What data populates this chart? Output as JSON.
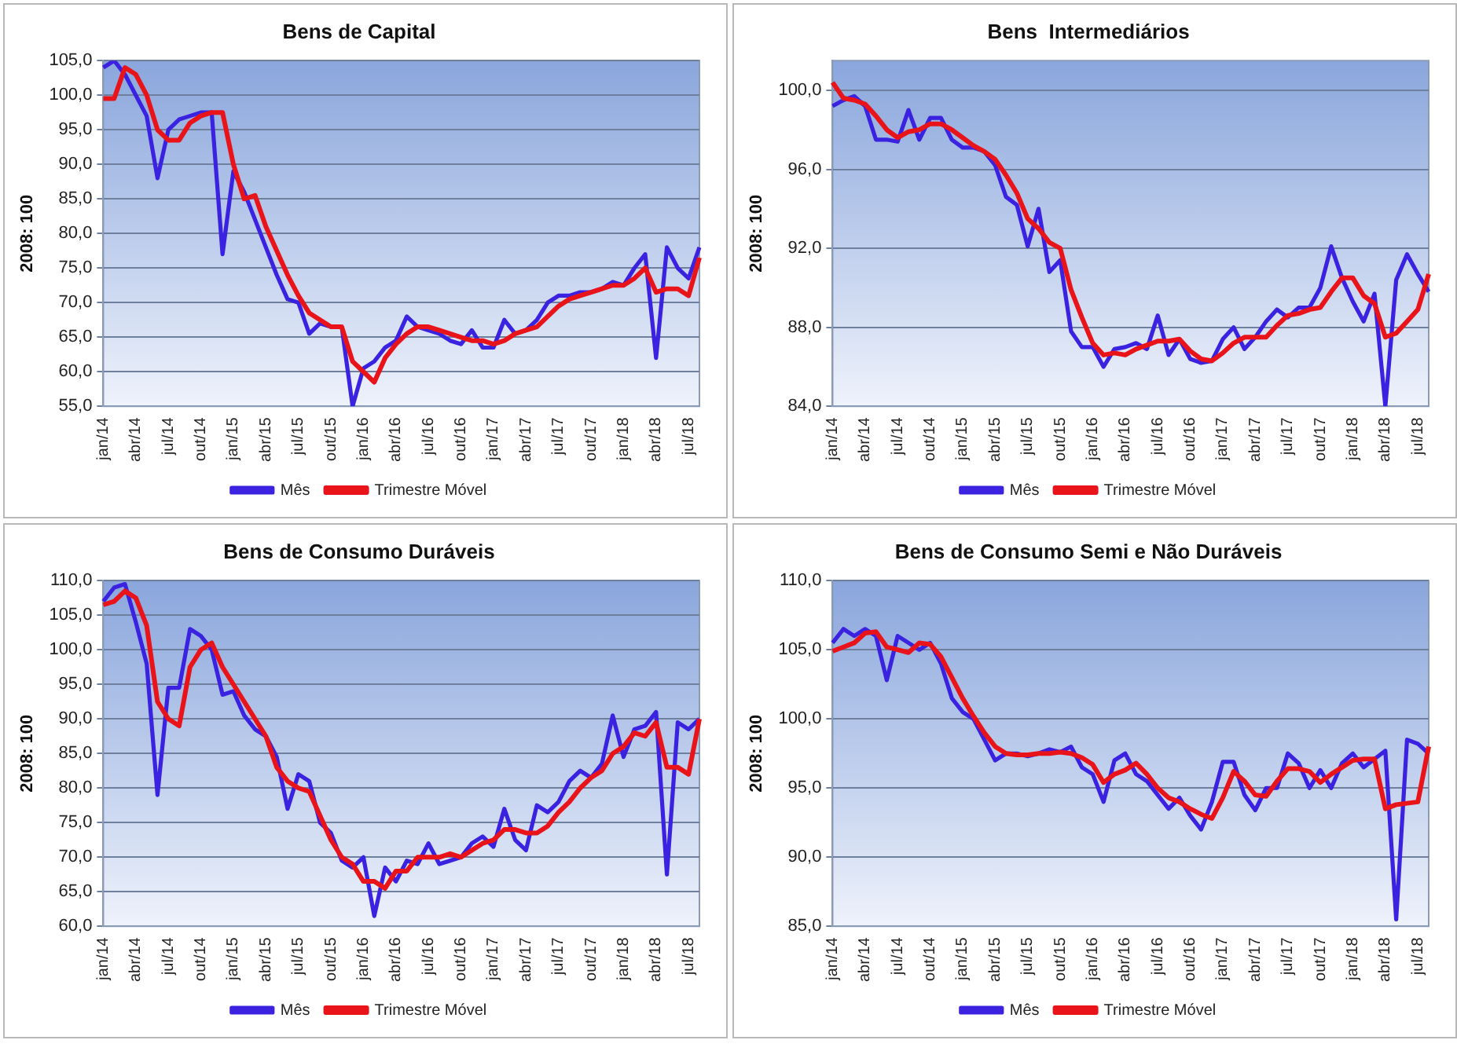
{
  "chart_data": [
    {
      "type": "line",
      "title": "Bens de Capital",
      "ylabel": "2008: 100",
      "legend": "bottom",
      "grid": "y",
      "categories": [
        "jan/14",
        null,
        null,
        "abr/14",
        null,
        null,
        "jul/14",
        null,
        null,
        "out/14",
        null,
        null,
        "jan/15",
        null,
        null,
        "abr/15",
        null,
        null,
        "jul/15",
        null,
        null,
        "out/15",
        null,
        null,
        "jan/16",
        null,
        null,
        "abr/16",
        null,
        null,
        "jul/16",
        null,
        null,
        "out/16",
        null,
        null,
        "jan/17",
        null,
        null,
        "abr/17",
        null,
        null,
        "jul/17",
        null,
        null,
        "out/17",
        null,
        null,
        "jan/18",
        null,
        null,
        "abr/18",
        null,
        null,
        "jul/18",
        null
      ],
      "ylim": [
        55,
        105
      ],
      "yticks": [
        {
          "value": 55,
          "label": "55,0"
        },
        {
          "value": 60,
          "label": "60,0"
        },
        {
          "value": 65,
          "label": "65,0"
        },
        {
          "value": 70,
          "label": "70,0"
        },
        {
          "value": 75,
          "label": "75,0"
        },
        {
          "value": 80,
          "label": "80,0"
        },
        {
          "value": 85,
          "label": "85,0"
        },
        {
          "value": 90,
          "label": "90,0"
        },
        {
          "value": 95,
          "label": "95,0"
        },
        {
          "value": 100,
          "label": "100,0"
        },
        {
          "value": 105,
          "label": "105,0"
        }
      ],
      "series": [
        {
          "name": "Mês",
          "color": "#3a22e0",
          "values": [
            104,
            105,
            103,
            100,
            97,
            88,
            95,
            96.5,
            97,
            97.5,
            97.5,
            77,
            89,
            86,
            82,
            78,
            74,
            70.5,
            70,
            65.5,
            67,
            66.5,
            66.5,
            55,
            60.5,
            61.5,
            63.5,
            64.5,
            68,
            66.5,
            66,
            65.5,
            64.5,
            64,
            66,
            63.5,
            63.5,
            67.5,
            65.5,
            66,
            67.5,
            70,
            71,
            71,
            71.5,
            71.5,
            72,
            73,
            72.5,
            75,
            77,
            62,
            78,
            75,
            73.5,
            78
          ]
        },
        {
          "name": "Trimestre Móvel",
          "color": "#e8141a",
          "values": [
            99.5,
            99.5,
            104,
            103,
            100,
            95,
            93.5,
            93.5,
            96,
            97,
            97.5,
            97.5,
            90,
            85,
            85.5,
            81,
            77.5,
            74,
            71,
            68.5,
            67.5,
            66.5,
            66.5,
            61.5,
            60,
            58.5,
            62,
            64,
            65.5,
            66.5,
            66.5,
            66,
            65.5,
            65,
            64.5,
            64.5,
            64,
            64.5,
            65.5,
            66,
            66.5,
            68,
            69.5,
            70.5,
            71,
            71.5,
            72,
            72.5,
            72.5,
            73.5,
            75,
            71.5,
            72,
            72,
            71,
            76.5
          ]
        }
      ]
    },
    {
      "type": "line",
      "title": "Bens  Intermediários",
      "ylabel": "2008: 100",
      "legend": "bottom",
      "grid": "y",
      "categories": [
        "jan/14",
        null,
        null,
        "abr/14",
        null,
        null,
        "jul/14",
        null,
        null,
        "out/14",
        null,
        null,
        "jan/15",
        null,
        null,
        "abr/15",
        null,
        null,
        "jul/15",
        null,
        null,
        "out/15",
        null,
        null,
        "jan/16",
        null,
        null,
        "abr/16",
        null,
        null,
        "jul/16",
        null,
        null,
        "out/16",
        null,
        null,
        "jan/17",
        null,
        null,
        "abr/17",
        null,
        null,
        "jul/17",
        null,
        null,
        "out/17",
        null,
        null,
        "jan/18",
        null,
        null,
        "abr/18",
        null,
        null,
        "jul/18",
        null
      ],
      "ylim": [
        84,
        101.5
      ],
      "yticks": [
        {
          "value": 84,
          "label": "84,0"
        },
        {
          "value": 88,
          "label": "88,0"
        },
        {
          "value": 92,
          "label": "92,0"
        },
        {
          "value": 96,
          "label": "96,0"
        },
        {
          "value": 100,
          "label": "100,0"
        }
      ],
      "series": [
        {
          "name": "Mês",
          "color": "#3a22e0",
          "values": [
            99.2,
            99.5,
            99.7,
            99.2,
            97.5,
            97.5,
            97.4,
            99,
            97.5,
            98.6,
            98.6,
            97.5,
            97.1,
            97.1,
            96.9,
            96.2,
            94.6,
            94.2,
            92.1,
            94,
            90.8,
            91.4,
            87.8,
            87,
            87,
            86,
            86.9,
            87,
            87.2,
            86.9,
            88.6,
            86.6,
            87.4,
            86.4,
            86.2,
            86.3,
            87.4,
            88,
            86.9,
            87.5,
            88.3,
            88.9,
            88.5,
            89,
            89,
            90,
            92.1,
            90.5,
            89.3,
            88.3,
            89.7,
            84,
            90.4,
            91.7,
            90.7,
            89.8
          ]
        },
        {
          "name": "Trimestre Móvel",
          "color": "#e8141a",
          "values": [
            100.4,
            99.6,
            99.5,
            99.3,
            98.7,
            98,
            97.6,
            97.9,
            98,
            98.3,
            98.3,
            98,
            97.6,
            97.2,
            96.9,
            96.5,
            95.7,
            94.8,
            93.5,
            93,
            92.3,
            92,
            89.9,
            88.5,
            87.2,
            86.6,
            86.7,
            86.6,
            86.9,
            87.1,
            87.3,
            87.3,
            87.4,
            86.8,
            86.4,
            86.3,
            86.7,
            87.2,
            87.5,
            87.5,
            87.5,
            88.1,
            88.6,
            88.7,
            88.9,
            89,
            89.8,
            90.5,
            90.5,
            89.6,
            89.2,
            87.5,
            87.7,
            88.3,
            88.9,
            90.7
          ]
        }
      ]
    },
    {
      "type": "line",
      "title": "Bens de Consumo Duráveis",
      "ylabel": "2008: 100",
      "legend": "bottom",
      "grid": "y",
      "categories": [
        "jan/14",
        null,
        null,
        "abr/14",
        null,
        null,
        "jul/14",
        null,
        null,
        "out/14",
        null,
        null,
        "jan/15",
        null,
        null,
        "abr/15",
        null,
        null,
        "jul/15",
        null,
        null,
        "out/15",
        null,
        null,
        "jan/16",
        null,
        null,
        "abr/16",
        null,
        null,
        "jul/16",
        null,
        null,
        "out/16",
        null,
        null,
        "jan/17",
        null,
        null,
        "abr/17",
        null,
        null,
        "jul/17",
        null,
        null,
        "out/17",
        null,
        null,
        "jan/18",
        null,
        null,
        "abr/18",
        null,
        null,
        "jul/18",
        null
      ],
      "ylim": [
        60,
        110
      ],
      "yticks": [
        {
          "value": 60,
          "label": "60,0"
        },
        {
          "value": 65,
          "label": "65,0"
        },
        {
          "value": 70,
          "label": "70,0"
        },
        {
          "value": 75,
          "label": "75,0"
        },
        {
          "value": 80,
          "label": "80,0"
        },
        {
          "value": 85,
          "label": "85,0"
        },
        {
          "value": 90,
          "label": "90,0"
        },
        {
          "value": 95,
          "label": "95,0"
        },
        {
          "value": 100,
          "label": "100,0"
        },
        {
          "value": 105,
          "label": "105,0"
        },
        {
          "value": 110,
          "label": "110,0"
        }
      ],
      "series": [
        {
          "name": "Mês",
          "color": "#3a22e0",
          "values": [
            107,
            109,
            109.5,
            104,
            98,
            79,
            94.5,
            94.5,
            103,
            102,
            100,
            93.5,
            94,
            90.5,
            88.5,
            87.5,
            84.5,
            77,
            82,
            81,
            75,
            73.5,
            69.5,
            68.5,
            70,
            61.5,
            68.5,
            66.5,
            69.5,
            69,
            72,
            69,
            69.5,
            70,
            72,
            73,
            71.5,
            77,
            72.5,
            71,
            77.5,
            76.5,
            78,
            81,
            82.5,
            81.5,
            83.5,
            90.5,
            84.5,
            88.5,
            89,
            91,
            67.5,
            89.5,
            88.5,
            90
          ]
        },
        {
          "name": "Trimestre Móvel",
          "color": "#e8141a",
          "values": [
            106.5,
            107,
            108.5,
            107.5,
            103.5,
            92.5,
            90,
            89,
            97.5,
            100,
            101,
            97.5,
            95,
            92.5,
            90,
            87.5,
            83,
            81,
            80,
            79.5,
            76,
            72.5,
            70,
            69,
            66.5,
            66.5,
            65.5,
            68,
            68,
            70,
            70,
            70,
            70.5,
            70,
            71,
            72,
            72.5,
            74,
            74,
            73.5,
            73.5,
            74.5,
            76.5,
            78,
            80,
            81.5,
            82.5,
            85,
            86,
            88,
            87.5,
            89.5,
            83,
            83,
            82,
            90
          ]
        }
      ]
    },
    {
      "type": "line",
      "title": "Bens de Consumo Semi e Não Duráveis",
      "ylabel": "2008: 100",
      "legend": "bottom",
      "grid": "y",
      "categories": [
        "jan/14",
        null,
        null,
        "abr/14",
        null,
        null,
        "jul/14",
        null,
        null,
        "out/14",
        null,
        null,
        "jan/15",
        null,
        null,
        "abr/15",
        null,
        null,
        "jul/15",
        null,
        null,
        "out/15",
        null,
        null,
        "jan/16",
        null,
        null,
        "abr/16",
        null,
        null,
        "jul/16",
        null,
        null,
        "out/16",
        null,
        null,
        "jan/17",
        null,
        null,
        "abr/17",
        null,
        null,
        "jul/17",
        null,
        null,
        "out/17",
        null,
        null,
        "jan/18",
        null,
        null,
        "abr/18",
        null,
        null,
        "jul/18",
        null
      ],
      "ylim": [
        85,
        110
      ],
      "yticks": [
        {
          "value": 85,
          "label": "85,0"
        },
        {
          "value": 90,
          "label": "90,0"
        },
        {
          "value": 95,
          "label": "95,0"
        },
        {
          "value": 100,
          "label": "100,0"
        },
        {
          "value": 105,
          "label": "105,0"
        },
        {
          "value": 110,
          "label": "110,0"
        }
      ],
      "series": [
        {
          "name": "Mês",
          "color": "#3a22e0",
          "values": [
            105.5,
            106.5,
            106,
            106.5,
            106,
            102.8,
            106,
            105.5,
            105,
            105.5,
            104,
            101.5,
            100.5,
            100,
            98.5,
            97,
            97.5,
            97.5,
            97.3,
            97.5,
            97.8,
            97.6,
            98,
            96.5,
            96,
            94,
            97,
            97.5,
            96,
            95.5,
            94.5,
            93.5,
            94.3,
            93,
            92,
            94,
            96.9,
            96.9,
            94.5,
            93.4,
            95,
            95,
            97.5,
            96.8,
            95,
            96.3,
            95,
            96.8,
            97.5,
            96.5,
            97.1,
            97.7,
            85.5,
            98.5,
            98.2,
            97.5
          ]
        },
        {
          "name": "Trimestre Móvel",
          "color": "#e8141a",
          "values": [
            104.9,
            105.2,
            105.5,
            106.2,
            106.3,
            105.2,
            105,
            104.8,
            105.5,
            105.4,
            104.5,
            103,
            101.5,
            100.2,
            99,
            98,
            97.5,
            97.4,
            97.4,
            97.5,
            97.5,
            97.6,
            97.5,
            97.2,
            96.7,
            95.4,
            96,
            96.3,
            96.8,
            96,
            95,
            94.3,
            94,
            93.5,
            93.1,
            92.8,
            94.3,
            96.2,
            95.5,
            94.5,
            94.4,
            95.5,
            96.4,
            96.4,
            96.2,
            95.4,
            96,
            96.5,
            97,
            97.1,
            97.1,
            93.5,
            93.8,
            93.9,
            94,
            98
          ]
        }
      ]
    }
  ]
}
